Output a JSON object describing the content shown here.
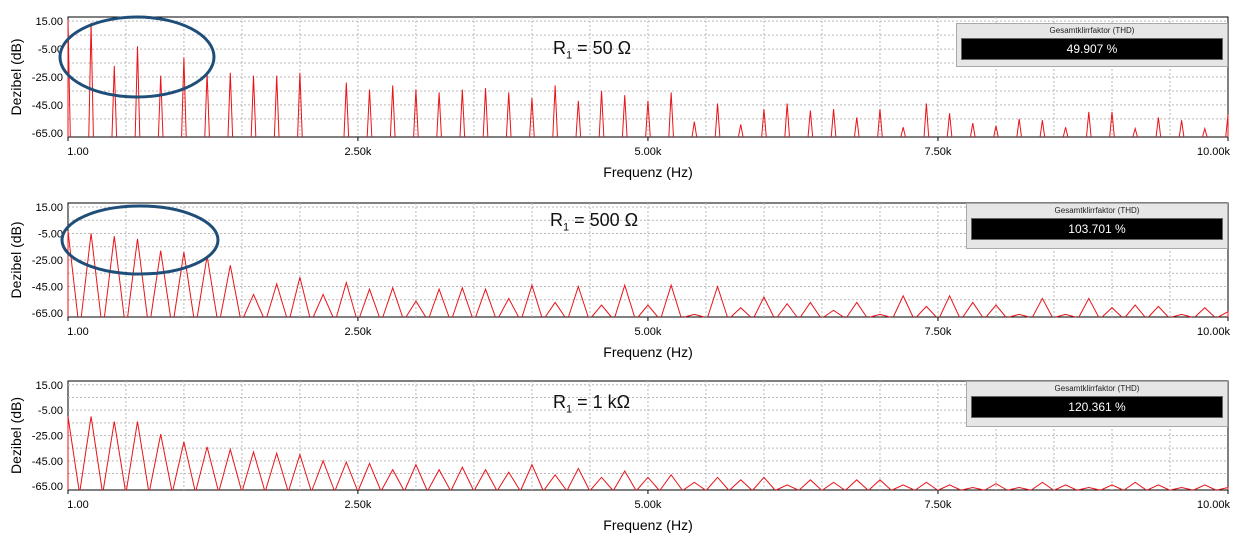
{
  "colors": {
    "series": "#e8141a",
    "grid": "#b9b9b9",
    "ellipse": "#1f4e79",
    "display_bg": "#000000"
  },
  "panels": [
    {
      "resistor_label": {
        "prefix": "R",
        "sub": "1",
        "suffix": " = 50 Ω"
      },
      "thd": {
        "title": "Gesamtklirrfaktor (THD)",
        "value": "49.907 %"
      },
      "has_ellipse": true,
      "chart_data": {
        "type": "line",
        "title": "",
        "xlabel": "Frequenz (Hz)",
        "ylabel": "Dezibel (dB)",
        "x_tick_labels": [
          "1.00",
          "2.50k",
          "5.00k",
          "7.50k",
          "10.00k"
        ],
        "x_ticks": [
          1,
          2500,
          5000,
          7500,
          10000
        ],
        "y_tick_labels": [
          "15.00",
          "-5.00",
          "-25.00",
          "-45.00",
          "-65.00"
        ],
        "y_ticks": [
          15,
          -5,
          -25,
          -45,
          -65
        ],
        "xlim": [
          1,
          10000
        ],
        "ylim": [
          -68,
          18
        ],
        "grid": true,
        "floor_db": -68,
        "peak_halfwidth_hz": 20,
        "peaks": {
          "f": [
            1,
            200,
            400,
            600,
            800,
            1000,
            1200,
            1400,
            1600,
            1800,
            2000,
            2400,
            2600,
            2800,
            3000,
            3200,
            3400,
            3600,
            3800,
            4000,
            4200,
            4400,
            4600,
            4800,
            5000,
            5200,
            5400,
            5600,
            5800,
            6000,
            6200,
            6400,
            6600,
            6800,
            7000,
            7200,
            7400,
            7600,
            7800,
            8000,
            8200,
            8400,
            8600,
            8800,
            9000,
            9200,
            9400,
            9600,
            9800,
            10000
          ],
          "db": [
            16,
            14,
            -17,
            -3,
            -24,
            -11,
            -22,
            -22,
            -24,
            -24,
            -22,
            -29,
            -34,
            -31,
            -34,
            -36,
            -34,
            -33,
            -36,
            -40,
            -31,
            -42,
            -35,
            -38,
            -42,
            -36,
            -57,
            -44,
            -59,
            -48,
            -44,
            -49,
            -48,
            -54,
            -48,
            -61,
            -44,
            -51,
            -58,
            -60,
            -55,
            -56,
            -61,
            -50,
            -50,
            -62,
            -54,
            -56,
            -62,
            -52
          ]
        }
      }
    },
    {
      "resistor_label": {
        "prefix": "R",
        "sub": "1",
        "suffix": " = 500 Ω"
      },
      "thd": {
        "title": "Gesamtklirrfaktor (THD)",
        "value": "103.701 %"
      },
      "has_ellipse": true,
      "chart_data": {
        "type": "line",
        "title": "",
        "xlabel": "Frequenz (Hz)",
        "ylabel": "Dezibel (dB)",
        "x_tick_labels": [
          "1.00",
          "2.50k",
          "5.00k",
          "7.50k",
          "10.00k"
        ],
        "x_ticks": [
          1,
          2500,
          5000,
          7500,
          10000
        ],
        "y_tick_labels": [
          "15.00",
          "-5.00",
          "-25.00",
          "-45.00",
          "-65.00"
        ],
        "y_ticks": [
          15,
          -5,
          -25,
          -45,
          -65
        ],
        "xlim": [
          1,
          10000
        ],
        "ylim": [
          -68,
          18
        ],
        "grid": true,
        "floor_db": -68,
        "peak_halfwidth_hz": 85,
        "peaks": {
          "f": [
            1,
            200,
            400,
            600,
            800,
            1000,
            1200,
            1400,
            1600,
            1800,
            2000,
            2200,
            2400,
            2600,
            2800,
            3000,
            3200,
            3400,
            3600,
            3800,
            4000,
            4200,
            4400,
            4600,
            4800,
            5000,
            5200,
            5400,
            5600,
            5800,
            6000,
            6200,
            6400,
            6600,
            6800,
            7000,
            7200,
            7400,
            7600,
            7800,
            8000,
            8200,
            8400,
            8600,
            8800,
            9000,
            9200,
            9400,
            9600,
            9800,
            10000
          ],
          "db": [
            -3,
            -5,
            -7,
            -9,
            -18,
            -19,
            -22,
            -29,
            -51,
            -43,
            -38,
            -51,
            -42,
            -47,
            -46,
            -56,
            -47,
            -46,
            -47,
            -54,
            -44,
            -57,
            -45,
            -59,
            -44,
            -59,
            -44,
            -66,
            -45,
            -61,
            -53,
            -58,
            -57,
            -63,
            -57,
            -66,
            -52,
            -60,
            -52,
            -57,
            -59,
            -66,
            -54,
            -66,
            -54,
            -61,
            -59,
            -60,
            -66,
            -61,
            -64
          ]
        }
      }
    },
    {
      "resistor_label": {
        "prefix": "R",
        "sub": "1",
        "suffix": " = 1 kΩ"
      },
      "thd": {
        "title": "Gesamtklirrfaktor (THD)",
        "value": "120.361 %"
      },
      "has_ellipse": false,
      "chart_data": {
        "type": "line",
        "title": "",
        "xlabel": "Frequenz (Hz)",
        "ylabel": "Dezibel (dB)",
        "x_tick_labels": [
          "1.00",
          "2.50k",
          "5.00k",
          "7.50k",
          "10.00k"
        ],
        "x_ticks": [
          1,
          2500,
          5000,
          7500,
          10000
        ],
        "y_tick_labels": [
          "15.00",
          "-5.00",
          "-25.00",
          "-45.00",
          "-65.00"
        ],
        "y_ticks": [
          15,
          -5,
          -25,
          -45,
          -65
        ],
        "xlim": [
          1,
          10000
        ],
        "ylim": [
          -68,
          18
        ],
        "grid": true,
        "floor_db": -68,
        "peak_halfwidth_hz": 95,
        "peaks": {
          "f": [
            1,
            200,
            400,
            600,
            800,
            1000,
            1200,
            1400,
            1600,
            1800,
            2000,
            2200,
            2400,
            2600,
            2800,
            3000,
            3200,
            3400,
            3600,
            3800,
            4000,
            4200,
            4400,
            4600,
            4800,
            5000,
            5200,
            5400,
            5600,
            5800,
            6000,
            6200,
            6400,
            6600,
            6800,
            7000,
            7200,
            7400,
            7600,
            7800,
            8000,
            8200,
            8400,
            8600,
            8800,
            9000,
            9200,
            9400,
            9600,
            9800,
            10000
          ],
          "db": [
            -10,
            -10,
            -14,
            -14,
            -24,
            -30,
            -34,
            -36,
            -38,
            -39,
            -40,
            -45,
            -46,
            -47,
            -52,
            -48,
            -52,
            -50,
            -52,
            -54,
            -48,
            -56,
            -51,
            -58,
            -53,
            -58,
            -56,
            -62,
            -58,
            -60,
            -58,
            -64,
            -60,
            -62,
            -60,
            -60,
            -64,
            -62,
            -64,
            -66,
            -63,
            -66,
            -62,
            -64,
            -66,
            -64,
            -62,
            -64,
            -66,
            -64,
            -66
          ]
        }
      }
    }
  ]
}
